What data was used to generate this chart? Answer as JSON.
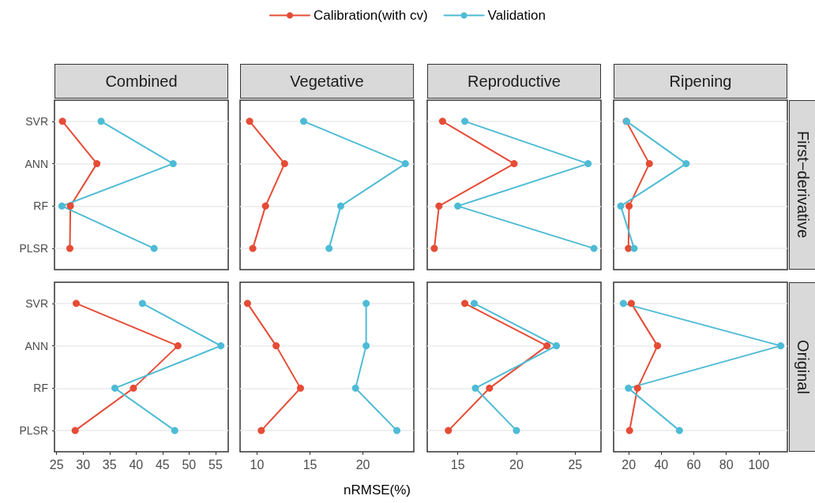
{
  "chart_data": [
    {
      "type": "line",
      "title": "Combined",
      "orientation": "horizontal",
      "categories": [
        "SVR",
        "ANN",
        "RF",
        "PLSR"
      ],
      "xlim": [
        24.6,
        57.4
      ],
      "xticks": [
        25,
        30,
        35,
        40,
        45,
        50,
        55
      ],
      "tick_labels": "y",
      "grid": "y",
      "marker": "circle",
      "legend": "top",
      "series": [
        {
          "name": "Calibration(with cv)",
          "color": "#e64b35",
          "values": [
            26.1,
            32.6,
            27.6,
            27.5
          ]
        },
        {
          "name": "Validation",
          "color": "#4dbbd5",
          "values": [
            33.4,
            47.0,
            26.0,
            43.4
          ]
        }
      ]
    },
    {
      "type": "line",
      "title": "Vegetative",
      "orientation": "horizontal",
      "categories": [
        null,
        null,
        null,
        null
      ],
      "xlim": [
        8.4,
        24.8
      ],
      "xticks": [
        10,
        15,
        20
      ],
      "tick_labels": false,
      "grid": "y",
      "marker": "circle",
      "series": [
        {
          "color": "#e64b35",
          "values": [
            9.3,
            12.6,
            10.8,
            9.6
          ]
        },
        {
          "color": "#4dbbd5",
          "values": [
            14.4,
            24.0,
            17.9,
            16.8
          ]
        }
      ]
    },
    {
      "type": "line",
      "title": "Reproductive",
      "orientation": "horizontal",
      "categories": [
        null,
        null,
        null,
        null
      ],
      "xlim": [
        12.4,
        27.2
      ],
      "xticks": [
        15,
        20,
        25
      ],
      "tick_labels": false,
      "grid": "y",
      "marker": "circle",
      "series": [
        {
          "color": "#e64b35",
          "values": [
            13.7,
            19.8,
            13.4,
            13.0
          ]
        },
        {
          "color": "#4dbbd5",
          "values": [
            15.6,
            26.1,
            15.0,
            26.6
          ]
        }
      ]
    },
    {
      "type": "line",
      "title": "Ripening",
      "annotations": [
        "First−derivative"
      ],
      "orientation": "horizontal",
      "categories": [
        null,
        null,
        null,
        null
      ],
      "xlim": [
        10.7,
        117.6
      ],
      "xticks": [
        20,
        40,
        60,
        80,
        100
      ],
      "tick_labels": false,
      "grid": "y",
      "marker": "circle",
      "series": [
        {
          "color": "#e64b35",
          "values": [
            18.5,
            32.7,
            20.2,
            19.8
          ]
        },
        {
          "color": "#4dbbd5",
          "values": [
            18.7,
            55.3,
            15.1,
            23.3
          ]
        }
      ]
    },
    {
      "type": "line",
      "orientation": "horizontal",
      "categories": [
        "SVR",
        "ANN",
        "RF",
        "PLSR"
      ],
      "xlim": [
        24.6,
        57.4
      ],
      "xticks": [
        25,
        30,
        35,
        40,
        45,
        50,
        55
      ],
      "grid": "y",
      "marker": "circle",
      "series": [
        {
          "color": "#e64b35",
          "values": [
            28.7,
            47.9,
            39.5,
            28.5
          ]
        },
        {
          "color": "#4dbbd5",
          "values": [
            41.2,
            56.0,
            36.0,
            47.3
          ]
        }
      ]
    },
    {
      "type": "line",
      "xlabel": "nRMSE(%)",
      "orientation": "horizontal",
      "categories": [
        null,
        null,
        null,
        null
      ],
      "xlim": [
        8.4,
        24.8
      ],
      "xticks": [
        10,
        15,
        20
      ],
      "tick_labels": "x",
      "grid": "y",
      "marker": "circle",
      "series": [
        {
          "color": "#e64b35",
          "values": [
            9.1,
            11.8,
            14.1,
            10.4
          ]
        },
        {
          "color": "#4dbbd5",
          "values": [
            20.3,
            20.3,
            19.3,
            23.2
          ]
        }
      ]
    },
    {
      "type": "line",
      "orientation": "horizontal",
      "categories": [
        null,
        null,
        null,
        null
      ],
      "xlim": [
        12.4,
        27.2
      ],
      "xticks": [
        15,
        20,
        25
      ],
      "tick_labels": "x",
      "grid": "y",
      "marker": "circle",
      "series": [
        {
          "color": "#e64b35",
          "values": [
            15.6,
            22.6,
            17.7,
            14.2
          ]
        },
        {
          "color": "#4dbbd5",
          "values": [
            16.4,
            23.4,
            16.5,
            20.0
          ]
        }
      ]
    },
    {
      "type": "line",
      "annotations": [
        "Original"
      ],
      "orientation": "horizontal",
      "categories": [
        null,
        null,
        null,
        null
      ],
      "xlim": [
        10.7,
        117.6
      ],
      "xticks": [
        20,
        40,
        60,
        80,
        100
      ],
      "tick_labels": "x",
      "grid": "y",
      "marker": "circle",
      "series": [
        {
          "color": "#e64b35",
          "values": [
            21.6,
            37.7,
            25.4,
            20.5
          ]
        },
        {
          "color": "#4dbbd5",
          "values": [
            16.7,
            113.5,
            19.8,
            51.2
          ]
        }
      ]
    }
  ]
}
